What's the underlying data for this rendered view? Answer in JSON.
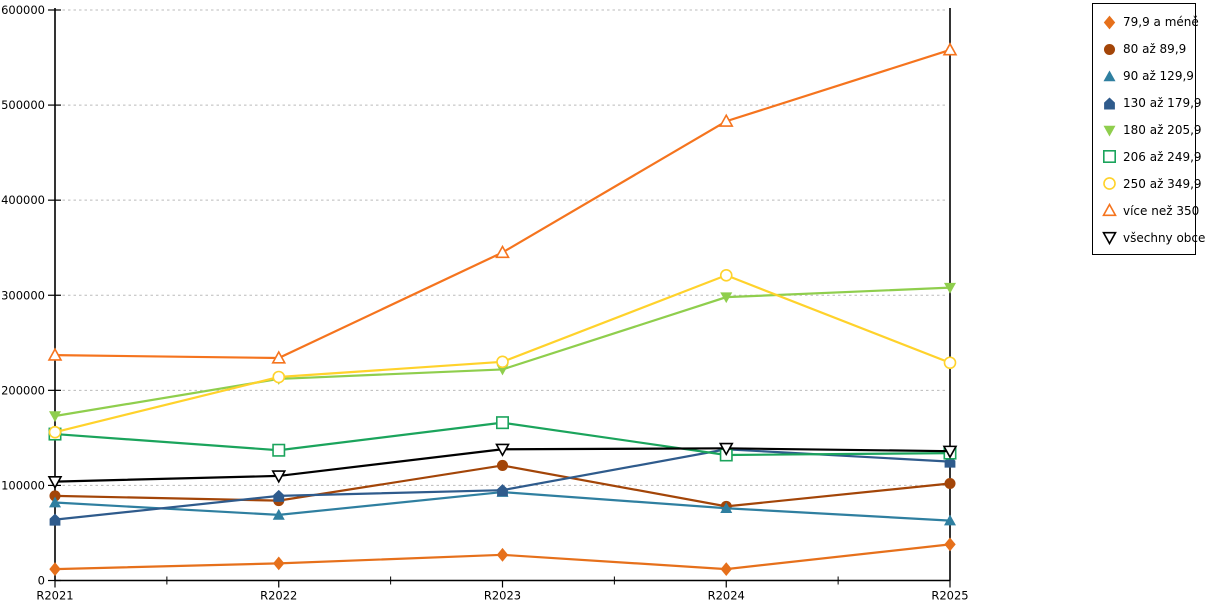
{
  "chart_data": {
    "type": "line",
    "title": "",
    "xlabel": "",
    "ylabel": "",
    "categories": [
      "R2021",
      "R2022",
      "R2023",
      "R2024",
      "R2025"
    ],
    "series": [
      {
        "name": "79,9 a méně",
        "color": "#E6701B",
        "marker": "diamond",
        "marker_style": "filled",
        "values": [
          12000,
          18000,
          27000,
          12000,
          38000
        ]
      },
      {
        "name": "80 až 89,9",
        "color": "#A34508",
        "marker": "circle",
        "marker_style": "filled",
        "values": [
          89000,
          84000,
          121000,
          78000,
          102000
        ]
      },
      {
        "name": "90 až 129,9",
        "color": "#2F7FA0",
        "marker": "triangle-up",
        "marker_style": "filled",
        "values": [
          82000,
          69000,
          93000,
          76000,
          63000
        ]
      },
      {
        "name": "130 až 179,9",
        "color": "#2F5B8C",
        "marker": "pentagon",
        "marker_style": "filled",
        "values": [
          64000,
          89000,
          95000,
          138000,
          125000
        ]
      },
      {
        "name": "180 až 205,9",
        "color": "#8FCE4D",
        "marker": "triangle-down",
        "marker_style": "filled",
        "values": [
          173000,
          212000,
          222000,
          298000,
          308000
        ]
      },
      {
        "name": "206 až 249,9",
        "color": "#1BA45C",
        "marker": "square",
        "marker_style": "open",
        "values": [
          154000,
          137000,
          166000,
          132000,
          134000
        ]
      },
      {
        "name": "250 až 349,9",
        "color": "#FFD22B",
        "marker": "circle",
        "marker_style": "open",
        "values": [
          156000,
          214000,
          230000,
          321000,
          229000
        ]
      },
      {
        "name": "více než 350",
        "color": "#F5741E",
        "marker": "triangle-up",
        "marker_style": "open",
        "values": [
          237000,
          234000,
          345000,
          483000,
          558000
        ]
      },
      {
        "name": "všechny obce",
        "color": "#000000",
        "marker": "triangle-down",
        "marker_style": "open",
        "values": [
          104000,
          110000,
          138000,
          139000,
          136000
        ]
      }
    ],
    "ylim": [
      0,
      600000
    ],
    "y_tick_interval": 100000,
    "y_tick_labels": [
      "0",
      "100000",
      "200000",
      "300000",
      "400000",
      "500000",
      "600000"
    ],
    "grid": "horizontal-dashed",
    "legend_position": "right"
  },
  "colors": {
    "background": "#ffffff",
    "grid": "#bbbbbb",
    "axis": "#000000",
    "legend_border": "#000000"
  }
}
